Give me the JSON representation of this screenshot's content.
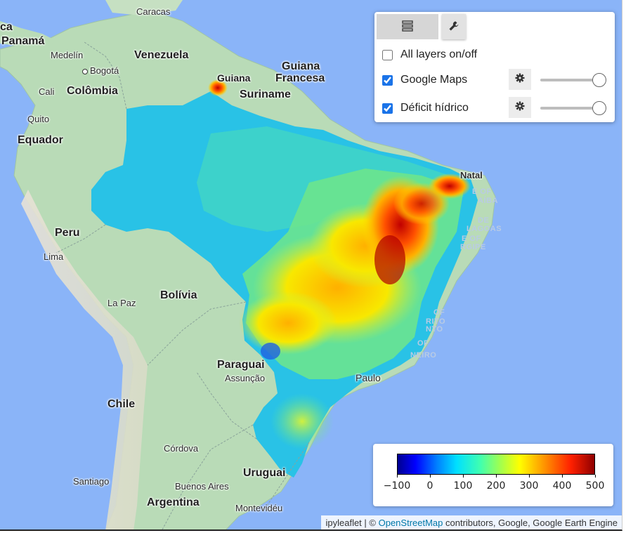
{
  "map": {
    "places": [
      {
        "name": "Caracas",
        "type": "city"
      },
      {
        "name": "ca",
        "type": "city"
      },
      {
        "name": "Panamá",
        "type": "country"
      },
      {
        "name": "Medelín",
        "type": "city"
      },
      {
        "name": "Venezuela",
        "type": "country"
      },
      {
        "name": "Guiana",
        "type": "country"
      },
      {
        "name": "Francesa",
        "type": "country"
      },
      {
        "name": "Guiana",
        "type": "country"
      },
      {
        "name": "Bogotá",
        "type": "city"
      },
      {
        "name": "Suriname",
        "type": "country"
      },
      {
        "name": "Cali",
        "type": "city"
      },
      {
        "name": "Colômbia",
        "type": "country"
      },
      {
        "name": "Quito",
        "type": "city"
      },
      {
        "name": "Equador",
        "type": "country"
      },
      {
        "name": "Natal",
        "type": "city"
      },
      {
        "name": "Peru",
        "type": "country"
      },
      {
        "name": "Lima",
        "type": "city"
      },
      {
        "name": "Bolívia",
        "type": "country"
      },
      {
        "name": "La Paz",
        "type": "city"
      },
      {
        "name": "Paraguai",
        "type": "country"
      },
      {
        "name": "Assunção",
        "type": "city"
      },
      {
        "name": "Paulo",
        "type": "city"
      },
      {
        "name": "Chile",
        "type": "country"
      },
      {
        "name": "Córdova",
        "type": "city"
      },
      {
        "name": "Uruguai",
        "type": "country"
      },
      {
        "name": "Santiago",
        "type": "city"
      },
      {
        "name": "Buenos Aires",
        "type": "city"
      },
      {
        "name": "Argentina",
        "type": "country"
      },
      {
        "name": "Montevidéu",
        "type": "city"
      }
    ],
    "faded_labels": [
      "E OF",
      "AÍBA",
      "DE",
      "LAGOAS",
      "E OF",
      "RGIPE",
      "OF",
      "RITO",
      "NTO",
      "OF",
      "NEIRO"
    ]
  },
  "layer_control": {
    "tabs": [
      {
        "icon": "layers-icon"
      },
      {
        "icon": "wrench-icon"
      }
    ],
    "all_layers_label": "All layers on/off",
    "all_layers_checked": false,
    "layers": [
      {
        "label": "Google Maps",
        "checked": true,
        "opacity": 1.0,
        "settings_icon": "gear-icon"
      },
      {
        "label": "Déficit hídrico",
        "checked": true,
        "opacity": 1.0,
        "settings_icon": "gear-icon"
      }
    ]
  },
  "legend": {
    "ticks": [
      "−100",
      "0",
      "100",
      "200",
      "300",
      "400",
      "500"
    ],
    "min": -100,
    "max": 500,
    "colormap": [
      "#00008f",
      "#0000ff",
      "#0080ff",
      "#00e0ff",
      "#40ffb0",
      "#a0ff50",
      "#ffff00",
      "#ff9000",
      "#ff2000",
      "#8f0000"
    ]
  },
  "attribution": {
    "prefix": "ipyleaflet | ©",
    "link": "OpenStreetMap",
    "suffix": "contributors, Google, Google Earth Engine"
  }
}
